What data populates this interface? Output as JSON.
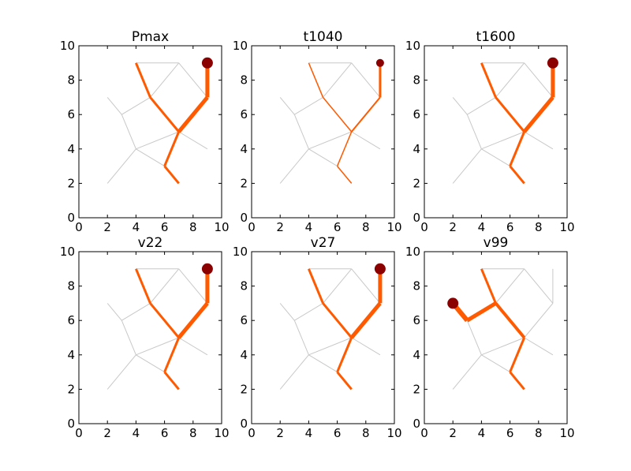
{
  "chart_data": [
    {
      "type": "network",
      "title": "Pmax",
      "xlim": [
        0,
        10
      ],
      "ylim": [
        0,
        10
      ],
      "xticks": [
        0,
        2,
        4,
        6,
        8,
        10
      ],
      "yticks": [
        0,
        2,
        4,
        6,
        8,
        10
      ],
      "flows": [
        {
          "x": [
            9,
            9
          ],
          "y": [
            9,
            7
          ],
          "width": 5
        },
        {
          "x": [
            9,
            7
          ],
          "y": [
            7,
            5
          ],
          "width": 5
        },
        {
          "x": [
            7,
            5
          ],
          "y": [
            5,
            7
          ],
          "width": 3
        },
        {
          "x": [
            5,
            4
          ],
          "y": [
            7,
            9
          ],
          "width": 3
        },
        {
          "x": [
            7,
            6
          ],
          "y": [
            5,
            3
          ],
          "width": 3
        },
        {
          "x": [
            6,
            7
          ],
          "y": [
            3,
            2
          ],
          "width": 3
        }
      ],
      "source": {
        "x": 9,
        "y": 9,
        "size": 7
      }
    },
    {
      "type": "network",
      "title": "t1040",
      "xlim": [
        0,
        10
      ],
      "ylim": [
        0,
        10
      ],
      "xticks": [
        0,
        2,
        4,
        6,
        8,
        10
      ],
      "yticks": [
        0,
        2,
        4,
        6,
        8,
        10
      ],
      "flows": [
        {
          "x": [
            9,
            9
          ],
          "y": [
            9,
            7
          ],
          "width": 3
        },
        {
          "x": [
            9,
            7
          ],
          "y": [
            7,
            5
          ],
          "width": 2
        },
        {
          "x": [
            7,
            5
          ],
          "y": [
            5,
            7
          ],
          "width": 1.5
        },
        {
          "x": [
            5,
            4
          ],
          "y": [
            7,
            9
          ],
          "width": 1.5
        },
        {
          "x": [
            7,
            6
          ],
          "y": [
            5,
            3
          ],
          "width": 1.5
        },
        {
          "x": [
            6,
            7
          ],
          "y": [
            3,
            2
          ],
          "width": 1.5
        }
      ],
      "source": {
        "x": 9,
        "y": 9,
        "size": 5
      }
    },
    {
      "type": "network",
      "title": "t1600",
      "xlim": [
        0,
        10
      ],
      "ylim": [
        0,
        10
      ],
      "xticks": [
        0,
        2,
        4,
        6,
        8,
        10
      ],
      "yticks": [
        0,
        2,
        4,
        6,
        8,
        10
      ],
      "flows": [
        {
          "x": [
            9,
            9
          ],
          "y": [
            9,
            7
          ],
          "width": 5
        },
        {
          "x": [
            9,
            7
          ],
          "y": [
            7,
            5
          ],
          "width": 5
        },
        {
          "x": [
            7,
            5
          ],
          "y": [
            5,
            7
          ],
          "width": 3
        },
        {
          "x": [
            5,
            4
          ],
          "y": [
            7,
            9
          ],
          "width": 3
        },
        {
          "x": [
            7,
            6
          ],
          "y": [
            5,
            3
          ],
          "width": 3
        },
        {
          "x": [
            6,
            7
          ],
          "y": [
            3,
            2
          ],
          "width": 3
        }
      ],
      "source": {
        "x": 9,
        "y": 9,
        "size": 7
      }
    },
    {
      "type": "network",
      "title": "v22",
      "xlim": [
        0,
        10
      ],
      "ylim": [
        0,
        10
      ],
      "xticks": [
        0,
        2,
        4,
        6,
        8,
        10
      ],
      "yticks": [
        0,
        2,
        4,
        6,
        8,
        10
      ],
      "flows": [
        {
          "x": [
            9,
            9
          ],
          "y": [
            9,
            7
          ],
          "width": 5
        },
        {
          "x": [
            9,
            7
          ],
          "y": [
            7,
            5
          ],
          "width": 5
        },
        {
          "x": [
            7,
            5
          ],
          "y": [
            5,
            7
          ],
          "width": 3
        },
        {
          "x": [
            5,
            4
          ],
          "y": [
            7,
            9
          ],
          "width": 3
        },
        {
          "x": [
            7,
            6
          ],
          "y": [
            5,
            3
          ],
          "width": 3
        },
        {
          "x": [
            6,
            7
          ],
          "y": [
            3,
            2
          ],
          "width": 3
        }
      ],
      "source": {
        "x": 9,
        "y": 9,
        "size": 7
      }
    },
    {
      "type": "network",
      "title": "v27",
      "xlim": [
        0,
        10
      ],
      "ylim": [
        0,
        10
      ],
      "xticks": [
        0,
        2,
        4,
        6,
        8,
        10
      ],
      "yticks": [
        0,
        2,
        4,
        6,
        8,
        10
      ],
      "flows": [
        {
          "x": [
            9,
            9
          ],
          "y": [
            9,
            7
          ],
          "width": 5
        },
        {
          "x": [
            9,
            7
          ],
          "y": [
            7,
            5
          ],
          "width": 5
        },
        {
          "x": [
            7,
            5
          ],
          "y": [
            5,
            7
          ],
          "width": 3
        },
        {
          "x": [
            5,
            4
          ],
          "y": [
            7,
            9
          ],
          "width": 3
        },
        {
          "x": [
            7,
            6
          ],
          "y": [
            5,
            3
          ],
          "width": 3
        },
        {
          "x": [
            6,
            7
          ],
          "y": [
            3,
            2
          ],
          "width": 3
        }
      ],
      "source": {
        "x": 9,
        "y": 9,
        "size": 7
      }
    },
    {
      "type": "network",
      "title": "v99",
      "xlim": [
        0,
        10
      ],
      "ylim": [
        0,
        10
      ],
      "xticks": [
        0,
        2,
        4,
        6,
        8,
        10
      ],
      "yticks": [
        0,
        2,
        4,
        6,
        8,
        10
      ],
      "flows": [
        {
          "x": [
            2,
            3
          ],
          "y": [
            7,
            6
          ],
          "width": 6
        },
        {
          "x": [
            3,
            5
          ],
          "y": [
            6,
            7
          ],
          "width": 5
        },
        {
          "x": [
            5,
            7
          ],
          "y": [
            7,
            5
          ],
          "width": 4
        },
        {
          "x": [
            5,
            4
          ],
          "y": [
            7,
            9
          ],
          "width": 3
        },
        {
          "x": [
            7,
            6
          ],
          "y": [
            5,
            3
          ],
          "width": 3
        },
        {
          "x": [
            6,
            7
          ],
          "y": [
            3,
            2
          ],
          "width": 3
        }
      ],
      "source": {
        "x": 2,
        "y": 7,
        "size": 7
      }
    }
  ],
  "network": {
    "edges": [
      {
        "x": [
          4,
          5
        ],
        "y": [
          9,
          7
        ]
      },
      {
        "x": [
          4,
          7
        ],
        "y": [
          9,
          9
        ]
      },
      {
        "x": [
          7,
          5
        ],
        "y": [
          9,
          7
        ]
      },
      {
        "x": [
          7,
          9
        ],
        "y": [
          9,
          7
        ]
      },
      {
        "x": [
          9,
          9
        ],
        "y": [
          9,
          7
        ]
      },
      {
        "x": [
          9,
          7
        ],
        "y": [
          7,
          5
        ]
      },
      {
        "x": [
          5,
          7
        ],
        "y": [
          7,
          5
        ]
      },
      {
        "x": [
          5,
          3
        ],
        "y": [
          7,
          6
        ]
      },
      {
        "x": [
          2,
          3
        ],
        "y": [
          7,
          6
        ]
      },
      {
        "x": [
          3,
          4
        ],
        "y": [
          6,
          4
        ]
      },
      {
        "x": [
          4,
          7
        ],
        "y": [
          4,
          5
        ]
      },
      {
        "x": [
          7,
          9
        ],
        "y": [
          5,
          4
        ]
      },
      {
        "x": [
          7,
          6
        ],
        "y": [
          5,
          3
        ]
      },
      {
        "x": [
          6,
          7
        ],
        "y": [
          3,
          2
        ]
      },
      {
        "x": [
          4,
          6
        ],
        "y": [
          4,
          3
        ]
      },
      {
        "x": [
          4,
          2
        ],
        "y": [
          4,
          2
        ]
      }
    ],
    "edge_color": "#c8c8c8",
    "flow_color": "#ff5a00",
    "source_color": "#8b0000"
  }
}
